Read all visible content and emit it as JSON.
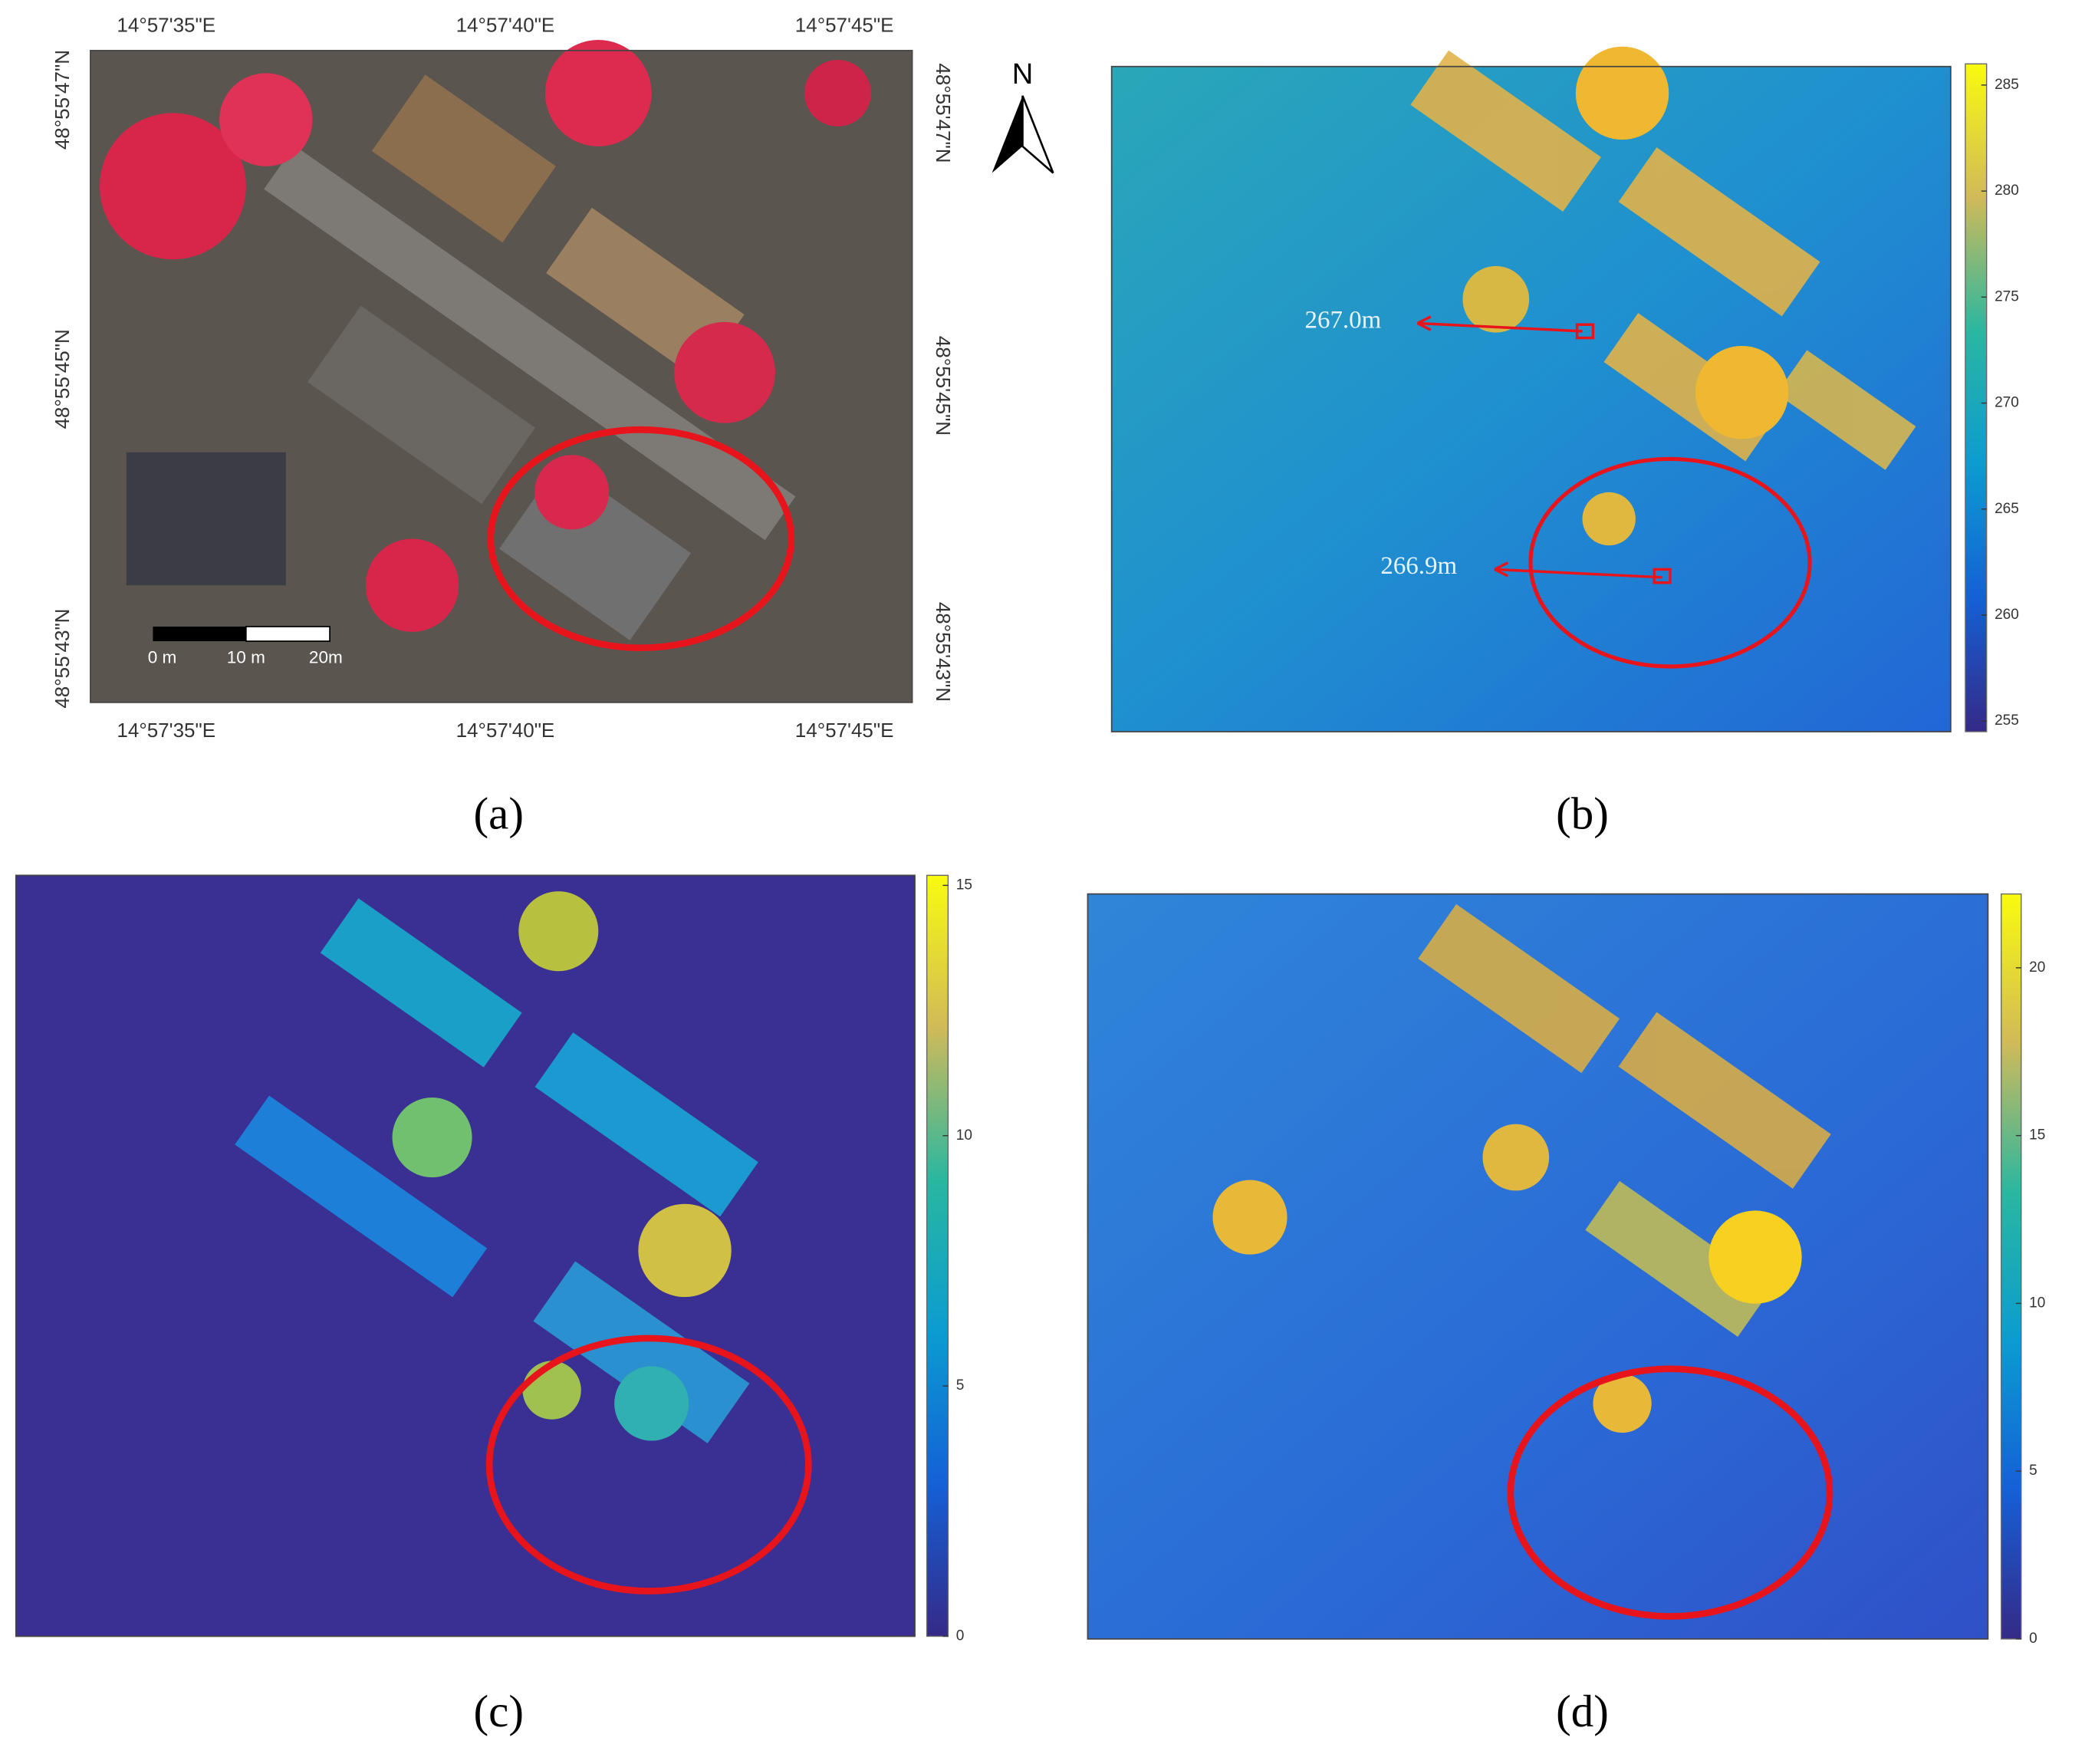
{
  "panels": [
    {
      "label": "(a)",
      "top_labels": [
        "14°57'35\"E",
        "14°57'40\"E",
        "14°57'45\"E"
      ],
      "bottom_labels": [
        "14°57'35\"E",
        "14°57'40\"E",
        "14°57'45\"E"
      ],
      "left_labels": [
        "48°55'47\"N",
        "48°55'45\"N",
        "48°55'43\"N"
      ],
      "right_labels": [
        "48°55'47\"N",
        "48°55'45\"N",
        "48°55'43\"N"
      ],
      "scale_bar": [
        "0 m",
        "10 m",
        "20m"
      ],
      "north": "N"
    },
    {
      "label": "(b)",
      "annotations": [
        "267.0m",
        "266.9m"
      ],
      "colorbar": {
        "lim": [
          254.5,
          286
        ],
        "ticks": [
          255,
          260,
          265,
          270,
          275,
          280,
          285
        ]
      }
    },
    {
      "label": "(c)",
      "colorbar": {
        "lim": [
          0,
          15.2
        ],
        "ticks": [
          0,
          5,
          10,
          15
        ]
      }
    },
    {
      "label": "(d)",
      "colorbar": {
        "lim": [
          0,
          22.2
        ],
        "ticks": [
          0,
          5,
          10,
          15,
          20
        ]
      }
    }
  ]
}
